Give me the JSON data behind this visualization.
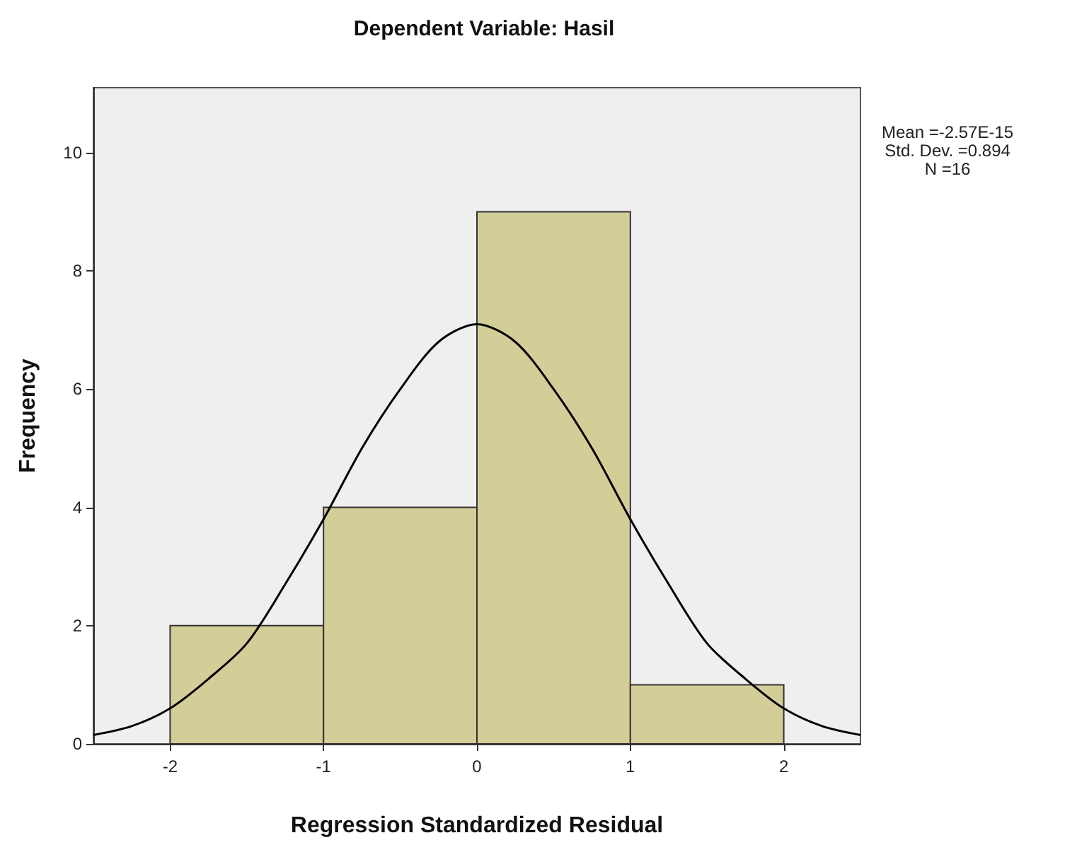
{
  "chart_data": {
    "type": "histogram",
    "title": "Dependent Variable: Hasil",
    "xlabel": "Regression Standardized Residual",
    "ylabel": "Frequency",
    "bins": [
      -2,
      -1,
      0,
      1,
      2
    ],
    "values": [
      2,
      4,
      9,
      1
    ],
    "color": "#d3cd98",
    "series": [
      {
        "type": "line",
        "color": "#000000",
        "x": [
          -2.5,
          -2.25,
          -2,
          -1.75,
          -1.5,
          -1.25,
          -1,
          -0.75,
          -0.5,
          -0.25,
          0,
          0.25,
          0.5,
          0.75,
          1,
          1.25,
          1.5,
          1.75,
          2,
          2.25,
          2.5
        ],
        "values": [
          0.15,
          0.3,
          0.6,
          1.1,
          1.7,
          2.7,
          3.8,
          5.0,
          6.0,
          6.8,
          7.1,
          6.8,
          6.0,
          5.0,
          3.8,
          2.7,
          1.7,
          1.1,
          0.6,
          0.3,
          0.15
        ]
      }
    ],
    "xlim": [
      -2.5,
      2.5
    ],
    "xticks": [
      -2,
      -1,
      0,
      1,
      2
    ],
    "ylim": [
      0,
      11.1
    ],
    "yticks": [
      0,
      2,
      4,
      6,
      8,
      10
    ],
    "grid": false,
    "marker": "none",
    "annotations": [
      "Mean =-2.57E-15\nStd. Dev. =0.894\nN =16"
    ]
  }
}
